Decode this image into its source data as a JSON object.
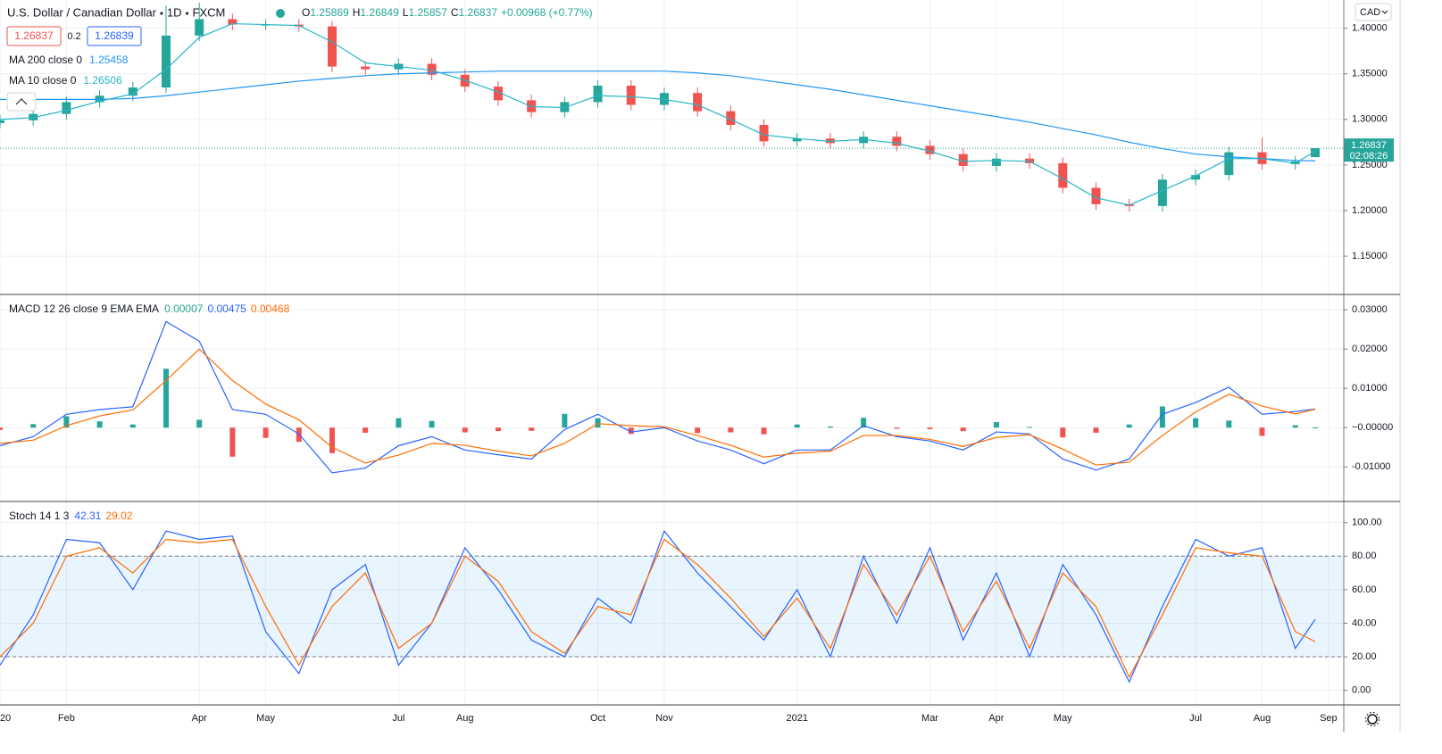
{
  "chart_data": [
    {
      "type": "candlestick",
      "title": "U.S. Dollar / Canadian Dollar",
      "interval": "1D",
      "source": "FXCM",
      "ohlc_letters": [
        "O",
        "H",
        "L",
        "C"
      ],
      "change": "+0.00968 (+0.77%)",
      "ask": 1.26839,
      "spread": 0.2,
      "currency": "CAD",
      "countdown": "02:08:26",
      "up_color": "#26a69a",
      "down_color": "#ef5350",
      "x": [
        0,
        0.5,
        1,
        1.5,
        2,
        2.5,
        3,
        3.5,
        4,
        4.5,
        5,
        5.5,
        6,
        6.5,
        7,
        7.5,
        8,
        8.5,
        9,
        9.5,
        10,
        10.5,
        11,
        11.5,
        12,
        12.5,
        13,
        13.5,
        14,
        14.5,
        15,
        15.5,
        16,
        16.5,
        17,
        17.5,
        18,
        18.5,
        19,
        19.5,
        19.8
      ],
      "open": [
        1.296,
        1.299,
        1.306,
        1.319,
        1.326,
        1.335,
        1.392,
        1.41,
        1.404,
        1.404,
        1.402,
        1.358,
        1.355,
        1.361,
        1.349,
        1.336,
        1.321,
        1.308,
        1.319,
        1.337,
        1.316,
        1.329,
        1.309,
        1.294,
        1.276,
        1.279,
        1.274,
        1.281,
        1.271,
        1.262,
        1.249,
        1.257,
        1.252,
        1.225,
        1.207,
        1.205,
        1.234,
        1.239,
        1.264,
        1.251,
        1.25869
      ],
      "high": [
        1.305,
        1.312,
        1.325,
        1.332,
        1.341,
        1.425,
        1.428,
        1.416,
        1.41,
        1.41,
        1.408,
        1.364,
        1.367,
        1.367,
        1.355,
        1.342,
        1.327,
        1.325,
        1.343,
        1.343,
        1.335,
        1.335,
        1.315,
        1.3,
        1.285,
        1.285,
        1.287,
        1.287,
        1.277,
        1.268,
        1.263,
        1.263,
        1.258,
        1.231,
        1.213,
        1.24,
        1.245,
        1.27,
        1.28,
        1.26,
        1.26849
      ],
      "low": [
        1.29,
        1.293,
        1.3,
        1.313,
        1.32,
        1.329,
        1.386,
        1.398,
        1.398,
        1.396,
        1.352,
        1.349,
        1.349,
        1.343,
        1.33,
        1.315,
        1.302,
        1.302,
        1.313,
        1.31,
        1.31,
        1.303,
        1.288,
        1.27,
        1.27,
        1.268,
        1.268,
        1.265,
        1.256,
        1.243,
        1.243,
        1.246,
        1.219,
        1.201,
        1.199,
        1.199,
        1.228,
        1.233,
        1.245,
        1.245,
        1.25857
      ],
      "close": [
        1.299,
        1.306,
        1.319,
        1.326,
        1.335,
        1.392,
        1.41,
        1.404,
        1.404,
        1.402,
        1.358,
        1.355,
        1.361,
        1.349,
        1.336,
        1.321,
        1.308,
        1.319,
        1.337,
        1.316,
        1.329,
        1.309,
        1.294,
        1.276,
        1.279,
        1.274,
        1.281,
        1.271,
        1.262,
        1.249,
        1.257,
        1.252,
        1.225,
        1.207,
        1.205,
        1.234,
        1.239,
        1.264,
        1.251,
        1.254,
        1.26837
      ],
      "series": [
        {
          "name": "MA 200 close 0",
          "color": "#2196f3",
          "values": [
            1.322,
            1.322,
            1.322,
            1.322,
            1.323,
            1.326,
            1.33,
            1.334,
            1.338,
            1.342,
            1.345,
            1.348,
            1.35,
            1.351,
            1.352,
            1.353,
            1.353,
            1.353,
            1.353,
            1.353,
            1.353,
            1.351,
            1.348,
            1.343,
            1.338,
            1.333,
            1.327,
            1.321,
            1.315,
            1.309,
            1.303,
            1.297,
            1.29,
            1.283,
            1.275,
            1.268,
            1.262,
            1.259,
            1.257,
            1.255,
            1.25458
          ]
        },
        {
          "name": "MA 10 close 0",
          "color": "#26b5c8",
          "values": [
            1.3,
            1.302,
            1.31,
            1.32,
            1.328,
            1.355,
            1.39,
            1.405,
            1.404,
            1.403,
            1.385,
            1.362,
            1.358,
            1.354,
            1.343,
            1.33,
            1.314,
            1.313,
            1.326,
            1.325,
            1.322,
            1.316,
            1.3,
            1.283,
            1.279,
            1.276,
            1.278,
            1.274,
            1.265,
            1.254,
            1.255,
            1.254,
            1.235,
            1.214,
            1.206,
            1.222,
            1.238,
            1.257,
            1.257,
            1.252,
            1.26506
          ]
        }
      ],
      "xlim": [
        0,
        20.23
      ],
      "ylim": [
        1.108,
        1.431
      ],
      "yticks": [
        {
          "value": 1.15,
          "label": "1.15000"
        },
        {
          "value": 1.2,
          "label": "1.20000"
        },
        {
          "value": 1.25,
          "label": "1.25000"
        },
        {
          "value": 1.3,
          "label": "1.30000"
        },
        {
          "value": 1.35,
          "label": "1.35000"
        },
        {
          "value": 1.4,
          "label": "1.40000"
        }
      ],
      "grid": true
    },
    {
      "type": "macd",
      "title": "MACD 12 26 close 9 EMA EMA",
      "x": [
        0,
        0.5,
        1,
        1.5,
        2,
        2.5,
        3,
        3.5,
        4,
        4.5,
        5,
        5.5,
        6,
        6.5,
        7,
        7.5,
        8,
        8.5,
        9,
        9.5,
        10,
        10.5,
        11,
        11.5,
        12,
        12.5,
        13,
        13.5,
        14,
        14.5,
        15,
        15.5,
        16,
        16.5,
        17,
        17.5,
        18,
        18.5,
        19,
        19.5,
        19.8
      ],
      "histogram": {
        "pos_color": "#26a69a",
        "neg_color": "#ef5350",
        "values": [
          -0.0006,
          0.0009,
          0.0029,
          0.0016,
          0.0008,
          0.015,
          0.002,
          -0.0074,
          -0.0026,
          -0.0036,
          -0.0065,
          -0.0013,
          0.0024,
          0.0017,
          -0.0012,
          -0.0009,
          -0.0008,
          0.0035,
          0.0024,
          -0.0016,
          -0.0002,
          -0.0014,
          -0.0012,
          -0.0017,
          0.0008,
          0.0003,
          0.0025,
          -0.0003,
          -0.0004,
          -0.0009,
          0.0014,
          0.0002,
          -0.0025,
          -0.0013,
          0.0008,
          0.0054,
          0.0024,
          0.0018,
          -0.0021,
          0.0006,
          7e-05
        ]
      },
      "series": [
        {
          "color": "#2962ff",
          "values": [
            -0.0046,
            -0.0023,
            0.0034,
            0.0046,
            0.0053,
            0.027,
            0.022,
            0.0046,
            0.0034,
            -0.0016,
            -0.0115,
            -0.0103,
            -0.0046,
            -0.0023,
            -0.0057,
            -0.0069,
            -0.008,
            -0.0005,
            0.0034,
            -0.0011,
            0,
            -0.0034,
            -0.0057,
            -0.0092,
            -0.0057,
            -0.0057,
            0.0005,
            -0.0023,
            -0.0034,
            -0.0057,
            -0.0011,
            -0.0016,
            -0.008,
            -0.0108,
            -0.008,
            0.0034,
            0.0064,
            0.0103,
            0.0034,
            0.0041,
            0.00475
          ]
        },
        {
          "color": "#ff6d00",
          "values": [
            -0.004,
            -0.0032,
            0.0005,
            0.003,
            0.0045,
            0.012,
            0.02,
            0.012,
            0.006,
            0.002,
            -0.005,
            -0.009,
            -0.007,
            -0.004,
            -0.0045,
            -0.006,
            -0.0072,
            -0.004,
            0.001,
            0.0005,
            0.0002,
            -0.002,
            -0.0045,
            -0.0075,
            -0.0065,
            -0.006,
            -0.002,
            -0.002,
            -0.003,
            -0.0048,
            -0.0025,
            -0.0018,
            -0.0055,
            -0.0095,
            -0.0088,
            -0.002,
            0.004,
            0.0085,
            0.0055,
            0.0035,
            0.00468
          ]
        }
      ],
      "xlim": [
        0,
        20.23
      ],
      "ylim": [
        -0.0188,
        0.0339
      ],
      "yticks": [
        {
          "value": -0.01,
          "label": "-0.01000"
        },
        {
          "value": 0,
          "label": "−0.00000"
        },
        {
          "value": 0.01,
          "label": "0.01000"
        },
        {
          "value": 0.02,
          "label": "0.02000"
        },
        {
          "value": 0.03,
          "label": "0.03000"
        }
      ],
      "grid": true
    },
    {
      "type": "stoch",
      "title": "Stoch 14 1 3",
      "band": [
        20,
        80
      ],
      "band_color": "rgba(33,150,243,0.1)",
      "x": [
        0,
        0.5,
        1,
        1.5,
        2,
        2.5,
        3,
        3.5,
        4,
        4.5,
        5,
        5.5,
        6,
        6.5,
        7,
        7.5,
        8,
        8.5,
        9,
        9.5,
        10,
        10.5,
        11,
        11.5,
        12,
        12.5,
        13,
        13.5,
        14,
        14.5,
        15,
        15.5,
        16,
        16.5,
        17,
        17.5,
        18,
        18.5,
        19,
        19.5,
        19.8
      ],
      "series": [
        {
          "color": "#2962ff",
          "values": [
            15,
            45,
            90,
            88,
            60,
            95,
            90,
            92,
            35,
            10,
            60,
            75,
            15,
            40,
            85,
            60,
            30,
            20,
            55,
            40,
            95,
            70,
            50,
            30,
            60,
            20,
            80,
            40,
            85,
            30,
            70,
            20,
            75,
            45,
            5,
            50,
            90,
            80,
            85,
            25,
            42.31
          ]
        },
        {
          "color": "#ff6d00",
          "values": [
            20,
            40,
            80,
            85,
            70,
            90,
            88,
            90,
            50,
            15,
            50,
            70,
            25,
            40,
            80,
            65,
            35,
            22,
            50,
            45,
            90,
            75,
            55,
            32,
            55,
            25,
            75,
            45,
            80,
            35,
            65,
            25,
            70,
            50,
            8,
            45,
            85,
            82,
            80,
            35,
            29.02
          ]
        }
      ],
      "xlim": [
        0,
        20.23
      ],
      "ylim": [
        -8.7,
        112.6
      ],
      "yticks": [
        {
          "value": 0,
          "label": "0.00"
        },
        {
          "value": 20,
          "label": "20.00"
        },
        {
          "value": 40,
          "label": "40.00"
        },
        {
          "value": 60,
          "label": "60.00"
        },
        {
          "value": 80,
          "label": "80.00"
        },
        {
          "value": 100,
          "label": "100.00"
        }
      ],
      "xticks": [
        {
          "value": 0,
          "label": "20"
        },
        {
          "value": 1,
          "label": "Feb"
        },
        {
          "value": 3,
          "label": "Apr"
        },
        {
          "value": 4,
          "label": "May"
        },
        {
          "value": 6,
          "label": "Jul"
        },
        {
          "value": 7,
          "label": "Aug"
        },
        {
          "value": 9,
          "label": "Oct"
        },
        {
          "value": 10,
          "label": "Nov"
        },
        {
          "value": 12,
          "label": "2021"
        },
        {
          "value": 14,
          "label": "Mar"
        },
        {
          "value": 15,
          "label": "Apr"
        },
        {
          "value": 16,
          "label": "May"
        },
        {
          "value": 18,
          "label": "Jul"
        },
        {
          "value": 19,
          "label": "Aug"
        },
        {
          "value": 20,
          "label": "Sep"
        }
      ],
      "grid": true
    }
  ]
}
